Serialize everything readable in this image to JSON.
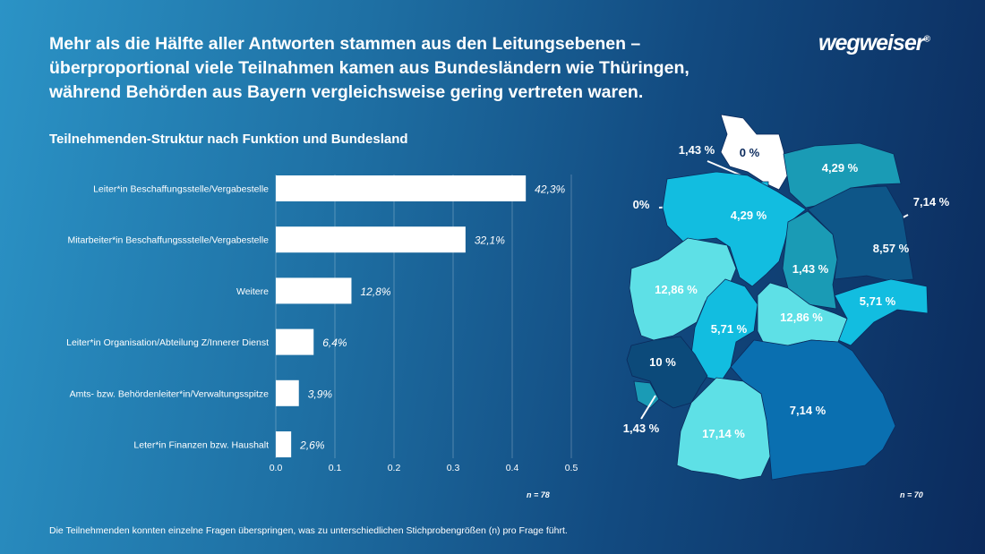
{
  "title": "Mehr als die Hälfte aller Antworten stammen aus den Leitungsebenen – überproportional viele Teilnahmen kamen aus Bundesländern wie Thüringen, während Behörden aus Bayern vergleichsweise gering vertreten waren.",
  "logo": "wegweiser",
  "subtitle": "Teilnehmenden-Struktur nach Funktion und Bundesland",
  "footnote": "Die Teilnehmenden konnten einzelne Fragen überspringen, was zu unterschiedlichen Stichprobengrößen (n) pro Frage führt.",
  "chart_data": [
    {
      "type": "bar",
      "orientation": "horizontal",
      "categories": [
        "Leiter*in Beschaffungsstelle/Vergabestelle",
        "Mitarbeiter*in Beschaffungssstelle/Vergabestelle",
        "Weitere",
        "Leiter*in Organisation/Abteilung Z/Innerer Dienst",
        "Amts- bzw. Behördenleiter*in/Verwaltungsspitze",
        "Leter*in Finanzen bzw. Haushalt"
      ],
      "values": [
        0.423,
        0.321,
        0.128,
        0.064,
        0.039,
        0.026
      ],
      "data_labels": [
        "42,3%",
        "32,1%",
        "12,8%",
        "6,4%",
        "3,9%",
        "2,6%"
      ],
      "xlim": [
        0,
        0.5
      ],
      "xticks": [
        "0.0",
        "0.1",
        "0.2",
        "0.3",
        "0.4",
        "0.5"
      ],
      "grid": true,
      "bar_color": "#ffffff",
      "note": "n = 78"
    },
    {
      "type": "choropleth",
      "regions": [
        {
          "name": "Schleswig-Holstein",
          "label": "0 %",
          "color": "#ffffff"
        },
        {
          "name": "Hamburg",
          "label": "1,43 %",
          "color": "#12bde0"
        },
        {
          "name": "Mecklenburg-Vorpommern",
          "label": "4,29 %",
          "color": "#1a9bb5"
        },
        {
          "name": "Bremen",
          "label": "0%",
          "color": "#ffffff"
        },
        {
          "name": "Niedersachsen",
          "label": "4,29 %",
          "color": "#12bde0"
        },
        {
          "name": "Berlin",
          "label": "7,14 %",
          "color": "#0a6fb0"
        },
        {
          "name": "Brandenburg",
          "label": "8,57 %",
          "color": "#0e5688"
        },
        {
          "name": "Sachsen-Anhalt",
          "label": "1,43 %",
          "color": "#1a9bb5"
        },
        {
          "name": "Nordrhein-Westfalen",
          "label": "12,86 %",
          "color": "#5ee0e6"
        },
        {
          "name": "Sachsen",
          "label": "5,71 %",
          "color": "#12bde0"
        },
        {
          "name": "Hessen",
          "label": "5,71 %",
          "color": "#12bde0"
        },
        {
          "name": "Thüringen",
          "label": "12,86 %",
          "color": "#5ee0e6"
        },
        {
          "name": "Rheinland-Pfalz",
          "label": "10 %",
          "color": "#0c4a7a"
        },
        {
          "name": "Saarland",
          "label": "1,43 %",
          "color": "#1a9bb5"
        },
        {
          "name": "Bayern",
          "label": "7,14 %",
          "color": "#0a6fb0"
        },
        {
          "name": "Baden-Württemberg",
          "label": "17,14 %",
          "color": "#5ee0e6"
        }
      ],
      "note": "n = 70"
    }
  ]
}
